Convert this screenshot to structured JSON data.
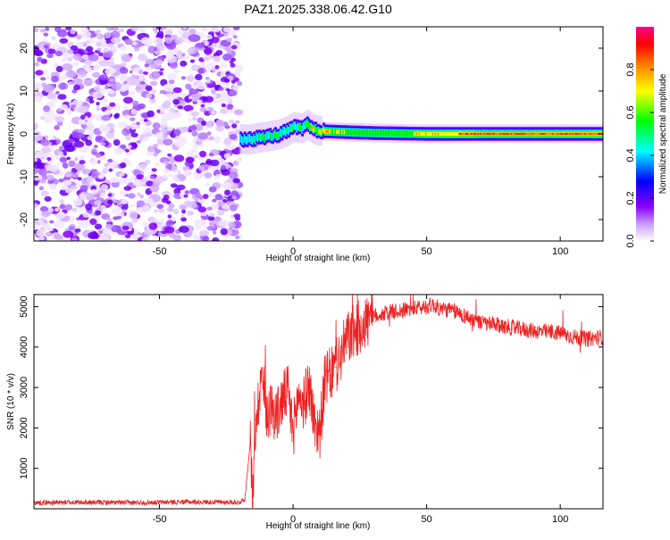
{
  "title": "PAZ1.2025.338.06.42.G10",
  "chart_data": [
    {
      "type": "heatmap",
      "name": "spectrogram",
      "xlabel": "Height of straight line (km)",
      "ylabel": "Frequency (Hz)",
      "xlim": [
        -97,
        116
      ],
      "ylim": [
        -25,
        25
      ],
      "xticks": [
        -50,
        0,
        50,
        100
      ],
      "yticks": [
        -20,
        -10,
        0,
        10,
        20
      ],
      "noise_region_x": [
        -97,
        -20
      ],
      "signal_ridge": {
        "x": [
          -20,
          -17,
          -14,
          -10,
          -6,
          -3,
          0,
          3,
          5,
          8,
          12,
          20,
          30,
          50,
          116
        ],
        "freq": [
          -1.2,
          -1.4,
          -1.0,
          -0.6,
          -0.2,
          0.5,
          1.6,
          1.2,
          2.2,
          0.9,
          0.6,
          0.4,
          0.2,
          0.0,
          0.0
        ]
      },
      "colorbar": {
        "label": "Normalized spectral amplitude",
        "ticks": [
          0.0,
          0.2,
          0.4,
          0.6,
          0.8
        ],
        "tick_labels": [
          "0.0",
          "0.2",
          "0.4",
          "0.6",
          "0.8"
        ],
        "colors": [
          "#ffffff",
          "#8a00ff",
          "#0000ff",
          "#00ffff",
          "#00ff00",
          "#ffff00",
          "#ff8000",
          "#ff0000",
          "#ff0090"
        ]
      }
    },
    {
      "type": "line",
      "name": "snr",
      "xlabel": "Height of straight line (km)",
      "ylabel": "SNR (10 * v/v)",
      "xlim": [
        -97,
        116
      ],
      "ylim": [
        0,
        5300
      ],
      "xticks": [
        -50,
        0,
        50,
        100
      ],
      "yticks": [
        1000,
        2000,
        3000,
        4000,
        5000
      ],
      "color": "#ee2222",
      "series": [
        {
          "name": "SNR",
          "x": [
            -97,
            -80,
            -60,
            -40,
            -20,
            -18,
            -16,
            -15,
            -14,
            -13,
            -12,
            -10,
            -8,
            -6,
            -4,
            -2,
            0,
            2,
            4,
            6,
            8,
            10,
            12,
            14,
            16,
            18,
            20,
            25,
            30,
            35,
            40,
            45,
            50,
            52,
            55,
            60,
            65,
            70,
            80,
            90,
            100,
            105,
            110,
            116
          ],
          "y": [
            150,
            160,
            150,
            170,
            160,
            250,
            1700,
            150,
            2200,
            2600,
            3400,
            2400,
            2500,
            2300,
            2700,
            2900,
            1900,
            2800,
            2600,
            3100,
            2100,
            1900,
            3200,
            3300,
            3500,
            3800,
            4200,
            4500,
            4750,
            4850,
            4900,
            4950,
            5000,
            5050,
            4950,
            4900,
            4750,
            4600,
            4500,
            4400,
            4350,
            4250,
            4200,
            4250
          ]
        }
      ]
    }
  ]
}
